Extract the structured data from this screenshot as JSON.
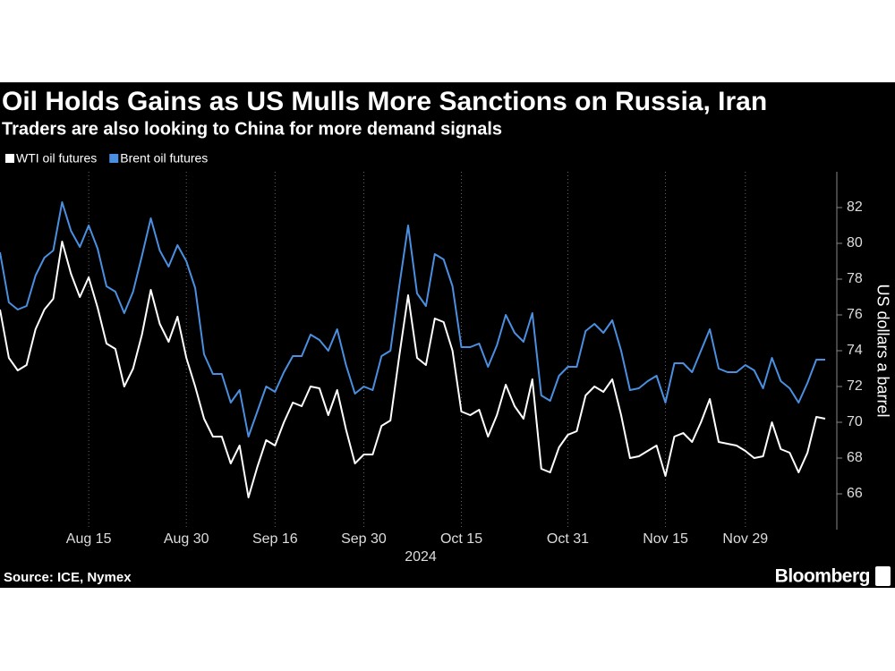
{
  "chart_data": {
    "type": "line",
    "title": "Oil Holds Gains as US Mulls More Sanctions on Russia, Iran",
    "subtitle": "Traders are also looking to China for more demand signals",
    "y_label": "US dollars a barrel",
    "x_year_label": "2024",
    "source": "Source: ICE, Nymex",
    "brand": "Bloomberg",
    "categories": [
      null,
      null,
      null,
      null,
      null,
      null,
      null,
      null,
      null,
      null,
      "Aug 15",
      null,
      null,
      null,
      null,
      null,
      null,
      null,
      null,
      null,
      null,
      "Aug 30",
      null,
      null,
      null,
      null,
      null,
      null,
      null,
      null,
      null,
      "Sep 16",
      null,
      null,
      null,
      null,
      null,
      null,
      null,
      null,
      null,
      "Sep 30",
      null,
      null,
      null,
      null,
      null,
      null,
      null,
      null,
      null,
      null,
      "Oct 15",
      null,
      null,
      null,
      null,
      null,
      null,
      null,
      null,
      null,
      null,
      null,
      "Oct 31",
      null,
      null,
      null,
      null,
      null,
      null,
      null,
      null,
      null,
      null,
      "Nov 15",
      null,
      null,
      null,
      null,
      null,
      null,
      null,
      null,
      "Nov 29",
      null,
      null,
      null,
      null,
      null,
      null,
      null,
      null,
      null
    ],
    "series": [
      {
        "name": "WTI oil futures",
        "color": "#ffffff",
        "values": [
          76.3,
          73.6,
          72.9,
          73.2,
          75.2,
          76.3,
          76.9,
          80.1,
          78.3,
          77.0,
          78.1,
          76.4,
          74.4,
          74.1,
          72.0,
          73.0,
          74.9,
          77.4,
          75.5,
          74.5,
          75.9,
          73.6,
          72.0,
          70.2,
          69.2,
          69.2,
          67.7,
          68.7,
          65.8,
          67.5,
          69.0,
          68.7,
          70.0,
          71.1,
          70.9,
          72.0,
          71.9,
          70.4,
          71.8,
          69.6,
          67.7,
          68.2,
          68.2,
          69.8,
          70.1,
          73.7,
          77.1,
          73.6,
          73.2,
          75.8,
          75.6,
          74.0,
          70.6,
          70.4,
          70.7,
          69.2,
          70.4,
          72.1,
          70.9,
          70.2,
          72.4,
          67.4,
          67.2,
          68.6,
          69.3,
          69.5,
          71.5,
          72.0,
          71.7,
          72.4,
          70.4,
          68.0,
          68.1,
          68.4,
          68.7,
          67.0,
          69.2,
          69.4,
          68.9,
          70.0,
          71.3,
          68.9,
          68.8,
          68.7,
          68.4,
          68.0,
          68.1,
          70.0,
          68.5,
          68.3,
          67.2,
          68.3,
          70.3,
          70.2
        ]
      },
      {
        "name": "Brent oil futures",
        "color": "#4a8fe0",
        "values": [
          79.5,
          76.7,
          76.3,
          76.5,
          78.2,
          79.2,
          79.6,
          82.3,
          80.7,
          79.8,
          81.0,
          79.7,
          77.6,
          77.3,
          76.1,
          77.3,
          79.3,
          81.4,
          79.6,
          78.7,
          79.9,
          79.0,
          77.5,
          73.8,
          72.7,
          72.7,
          71.1,
          71.8,
          69.2,
          70.6,
          72.0,
          71.7,
          72.8,
          73.7,
          73.7,
          74.9,
          74.6,
          74.0,
          75.2,
          73.2,
          71.6,
          72.0,
          71.8,
          73.7,
          74.0,
          77.6,
          81.0,
          77.2,
          76.5,
          79.4,
          79.1,
          77.6,
          74.2,
          74.2,
          74.4,
          73.1,
          74.3,
          76.0,
          75.0,
          74.5,
          76.1,
          71.5,
          71.2,
          72.6,
          73.1,
          73.1,
          75.1,
          75.5,
          75.0,
          75.7,
          74.0,
          71.8,
          71.9,
          72.3,
          72.6,
          71.1,
          73.3,
          73.3,
          72.8,
          74.0,
          75.2,
          73.0,
          72.8,
          72.8,
          73.2,
          72.9,
          71.9,
          73.6,
          72.3,
          71.9,
          71.1,
          72.2,
          73.5,
          73.5
        ]
      }
    ],
    "ylim": [
      64,
      84
    ],
    "yticks": [
      66,
      68,
      70,
      72,
      74,
      76,
      78,
      80,
      82
    ],
    "grid": true
  }
}
